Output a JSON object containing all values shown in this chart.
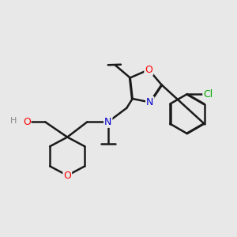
{
  "background_color": "#e8e8e8",
  "bond_color": "#1a1a1a",
  "atom_colors": {
    "O": "#ff0000",
    "N": "#0000cc",
    "Cl": "#00aa00",
    "H": "#888888",
    "C": "#1a1a1a"
  },
  "figsize": [
    3.0,
    3.0
  ],
  "dpi": 100,
  "bond_lw": 1.8,
  "font_size": 9
}
